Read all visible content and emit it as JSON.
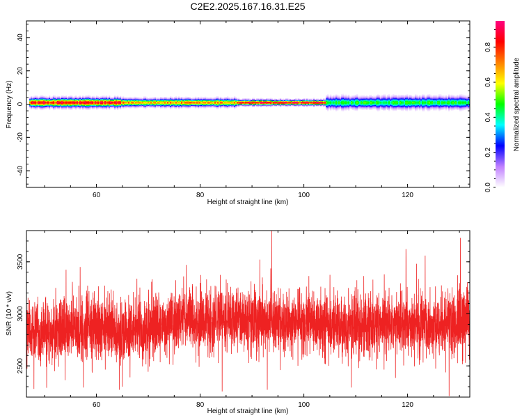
{
  "figure": {
    "title": "C2E2.2025.167.16.31.E25"
  },
  "chart_data": [
    {
      "type": "heatmap",
      "name": "spectrogram",
      "xlabel": "Height of straight line (km)",
      "ylabel": "Frequency (Hz)",
      "xlim": [
        46.5,
        132
      ],
      "ylim": [
        -50,
        50
      ],
      "xticks": [
        60,
        80,
        100,
        120
      ],
      "xtick_labels": [
        "60",
        "80",
        "100",
        "120"
      ],
      "yticks": [
        -40,
        -20,
        0,
        20,
        40
      ],
      "ytick_labels": [
        "-40",
        "-20",
        "0",
        "20",
        "40"
      ],
      "grid": false,
      "band": {
        "center_hz": 1,
        "segments": [
          {
            "x": [
              47,
              64.5
            ],
            "peak_amplitude": 0.9,
            "half_width_hz": 4
          },
          {
            "x": [
              64.5,
              87
            ],
            "peak_amplitude": 0.75,
            "half_width_hz": 3.5
          },
          {
            "x": [
              87,
              104
            ],
            "peak_amplitude": 0.92,
            "half_width_hz": 2.5
          },
          {
            "x": [
              104,
              132
            ],
            "peak_amplitude": 0.5,
            "half_width_hz": 5
          }
        ]
      },
      "colorbar": {
        "label": "Normalized spectral amplitude",
        "range": [
          0,
          0.95
        ],
        "ticks": [
          0,
          0.2,
          0.4,
          0.6,
          0.8
        ],
        "tick_labels": [
          "0.0",
          "0.2",
          "0.4",
          "0.6",
          "0.8"
        ],
        "colors": [
          "#ffffff",
          "#c080ff",
          "#0000ff",
          "#00ffff",
          "#00ff00",
          "#ffff00",
          "#ff8000",
          "#ff0000",
          "#ff0080"
        ]
      }
    },
    {
      "type": "line",
      "name": "snr",
      "xlabel": "Height of straight line (km)",
      "ylabel": "SNR (10 * v/v)",
      "xlim": [
        46.5,
        132
      ],
      "ylim": [
        2200,
        3800
      ],
      "xticks": [
        60,
        80,
        100,
        120
      ],
      "xtick_labels": [
        "60",
        "80",
        "100",
        "120"
      ],
      "yticks": [
        2500,
        3000,
        3500
      ],
      "ytick_labels": [
        "2500",
        "3000",
        "3500"
      ],
      "grid": false,
      "series": [
        {
          "color": "#ee2222",
          "baseline": [
            [
              46.5,
              2830
            ],
            [
              60,
              2860
            ],
            [
              65,
              2820
            ],
            [
              75,
              2920
            ],
            [
              85,
              2950
            ],
            [
              95,
              2920
            ],
            [
              105,
              2890
            ],
            [
              120,
              2900
            ],
            [
              132,
              2920
            ]
          ],
          "spread": 180,
          "n_points": 4500,
          "spikes": [
            {
              "x": 93.8,
              "y": 3800
            },
            {
              "x": 130.2,
              "y": 3730
            },
            {
              "x": 123.4,
              "y": 3560
            },
            {
              "x": 77.3,
              "y": 3470
            },
            {
              "x": 128.0,
              "y": 2210
            },
            {
              "x": 64.4,
              "y": 2270
            },
            {
              "x": 65.0,
              "y": 2300
            },
            {
              "x": 92.0,
              "y": 3350
            },
            {
              "x": 115.5,
              "y": 3380
            }
          ]
        }
      ]
    }
  ]
}
